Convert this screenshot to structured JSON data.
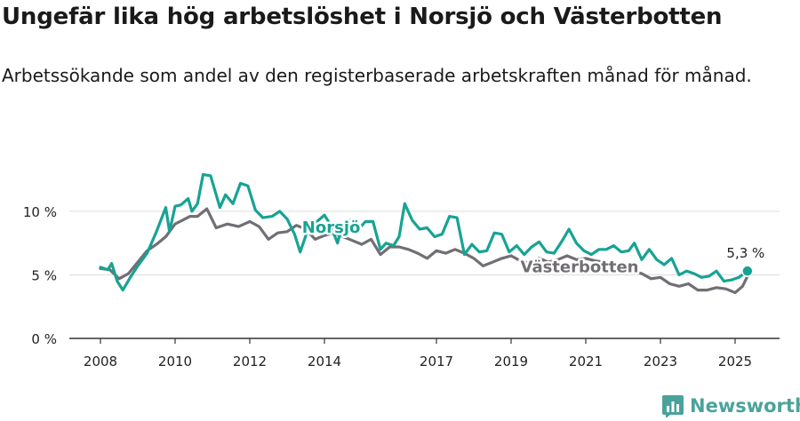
{
  "title": "Ungefär lika hög arbetslöshet i Norsjö och Västerbotten",
  "subtitle": "Arbetssökande som andel av den registerbaserade arbetskraften månad för månad.",
  "colors": {
    "norsjo": "#17a394",
    "vasterbotten": "#716e74",
    "grid": "#dddddd",
    "axis": "#333333"
  },
  "logo": {
    "text": "Newsworthy",
    "icon": "bar-chart-logo-icon"
  },
  "chart_data": {
    "type": "line",
    "title": "Ungefär lika hög arbetslöshet i Norsjö och Västerbotten",
    "subtitle": "Arbetssökande som andel av den registerbaserade arbetskraften månad för månad.",
    "xlim": [
      2007.5,
      2026.5
    ],
    "ylim": [
      0,
      13
    ],
    "x_ticks": [
      2008,
      2010,
      2012,
      2014,
      2017,
      2019,
      2021,
      2023,
      2025
    ],
    "x_tick_labels": [
      "2008",
      "2010",
      "2012",
      "2014",
      "2017",
      "2019",
      "2021",
      "2023",
      "2025"
    ],
    "y_ticks": [
      0,
      5,
      10
    ],
    "y_tick_labels": [
      "0 %",
      "5 %",
      "10 %"
    ],
    "grid": "horizontal",
    "annotation": {
      "x": 2025.33,
      "y": 5.3,
      "text": "5,3 %"
    },
    "series": [
      {
        "name": "Norsjö",
        "label_pos": [
          2013.4,
          8.3
        ],
        "points": [
          [
            2008.0,
            5.6
          ],
          [
            2008.2,
            5.4
          ],
          [
            2008.3,
            5.9
          ],
          [
            2008.45,
            4.5
          ],
          [
            2008.6,
            3.8
          ],
          [
            2008.8,
            4.8
          ],
          [
            2009.0,
            5.7
          ],
          [
            2009.25,
            6.7
          ],
          [
            2009.5,
            8.4
          ],
          [
            2009.75,
            10.3
          ],
          [
            2009.85,
            8.4
          ],
          [
            2010.0,
            10.4
          ],
          [
            2010.15,
            10.5
          ],
          [
            2010.35,
            11.0
          ],
          [
            2010.45,
            10.0
          ],
          [
            2010.6,
            10.6
          ],
          [
            2010.75,
            12.9
          ],
          [
            2010.95,
            12.8
          ],
          [
            2011.2,
            10.3
          ],
          [
            2011.35,
            11.3
          ],
          [
            2011.55,
            10.6
          ],
          [
            2011.75,
            12.2
          ],
          [
            2011.95,
            12.0
          ],
          [
            2012.15,
            10.1
          ],
          [
            2012.35,
            9.5
          ],
          [
            2012.6,
            9.6
          ],
          [
            2012.8,
            10.0
          ],
          [
            2013.0,
            9.4
          ],
          [
            2013.2,
            8.2
          ],
          [
            2013.35,
            6.8
          ],
          [
            2013.55,
            8.5
          ],
          [
            2013.8,
            9.2
          ],
          [
            2014.0,
            9.7
          ],
          [
            2014.15,
            9.0
          ],
          [
            2014.35,
            7.5
          ],
          [
            2014.45,
            8.6
          ],
          [
            2014.6,
            8.3
          ],
          [
            2014.7,
            9.3
          ],
          [
            2014.85,
            8.4
          ],
          [
            2015.1,
            9.2
          ],
          [
            2015.3,
            9.2
          ],
          [
            2015.5,
            7.0
          ],
          [
            2015.65,
            7.5
          ],
          [
            2015.85,
            7.3
          ],
          [
            2016.0,
            8.0
          ],
          [
            2016.15,
            10.6
          ],
          [
            2016.35,
            9.3
          ],
          [
            2016.55,
            8.6
          ],
          [
            2016.75,
            8.7
          ],
          [
            2016.95,
            8.0
          ],
          [
            2017.15,
            8.2
          ],
          [
            2017.35,
            9.6
          ],
          [
            2017.55,
            9.5
          ],
          [
            2017.75,
            6.6
          ],
          [
            2017.95,
            7.4
          ],
          [
            2018.15,
            6.8
          ],
          [
            2018.35,
            6.9
          ],
          [
            2018.55,
            8.3
          ],
          [
            2018.75,
            8.2
          ],
          [
            2018.95,
            6.8
          ],
          [
            2019.15,
            7.3
          ],
          [
            2019.35,
            6.6
          ],
          [
            2019.55,
            7.2
          ],
          [
            2019.75,
            7.6
          ],
          [
            2019.95,
            6.8
          ],
          [
            2020.15,
            6.7
          ],
          [
            2020.35,
            7.6
          ],
          [
            2020.55,
            8.6
          ],
          [
            2020.75,
            7.5
          ],
          [
            2020.95,
            6.9
          ],
          [
            2021.15,
            6.6
          ],
          [
            2021.35,
            7.0
          ],
          [
            2021.55,
            7.0
          ],
          [
            2021.75,
            7.3
          ],
          [
            2021.95,
            6.8
          ],
          [
            2022.15,
            6.9
          ],
          [
            2022.3,
            7.5
          ],
          [
            2022.5,
            6.2
          ],
          [
            2022.7,
            7.0
          ],
          [
            2022.9,
            6.2
          ],
          [
            2023.1,
            5.8
          ],
          [
            2023.3,
            6.3
          ],
          [
            2023.5,
            5.0
          ],
          [
            2023.7,
            5.3
          ],
          [
            2023.9,
            5.1
          ],
          [
            2024.1,
            4.8
          ],
          [
            2024.3,
            4.9
          ],
          [
            2024.5,
            5.3
          ],
          [
            2024.7,
            4.5
          ],
          [
            2024.9,
            4.6
          ],
          [
            2025.1,
            4.8
          ],
          [
            2025.33,
            5.3
          ]
        ]
      },
      {
        "name": "Västerbotten",
        "label_pos": [
          2019.25,
          5.2
        ],
        "points": [
          [
            2008.0,
            5.5
          ],
          [
            2008.25,
            5.4
          ],
          [
            2008.5,
            4.7
          ],
          [
            2008.75,
            5.1
          ],
          [
            2009.0,
            6.0
          ],
          [
            2009.25,
            6.9
          ],
          [
            2009.5,
            7.4
          ],
          [
            2009.75,
            8.0
          ],
          [
            2010.0,
            9.0
          ],
          [
            2010.2,
            9.3
          ],
          [
            2010.4,
            9.6
          ],
          [
            2010.6,
            9.6
          ],
          [
            2010.85,
            10.2
          ],
          [
            2011.1,
            8.7
          ],
          [
            2011.4,
            9.0
          ],
          [
            2011.7,
            8.8
          ],
          [
            2012.0,
            9.2
          ],
          [
            2012.25,
            8.8
          ],
          [
            2012.5,
            7.8
          ],
          [
            2012.75,
            8.3
          ],
          [
            2013.0,
            8.4
          ],
          [
            2013.25,
            8.9
          ],
          [
            2013.5,
            8.6
          ],
          [
            2013.75,
            7.8
          ],
          [
            2014.0,
            8.1
          ],
          [
            2014.25,
            8.3
          ],
          [
            2014.5,
            8.0
          ],
          [
            2014.75,
            7.7
          ],
          [
            2015.0,
            7.4
          ],
          [
            2015.25,
            7.8
          ],
          [
            2015.5,
            6.6
          ],
          [
            2015.75,
            7.2
          ],
          [
            2016.0,
            7.2
          ],
          [
            2016.25,
            7.0
          ],
          [
            2016.5,
            6.7
          ],
          [
            2016.75,
            6.3
          ],
          [
            2017.0,
            6.9
          ],
          [
            2017.25,
            6.7
          ],
          [
            2017.5,
            7.0
          ],
          [
            2017.75,
            6.7
          ],
          [
            2018.0,
            6.3
          ],
          [
            2018.25,
            5.7
          ],
          [
            2018.5,
            6.0
          ],
          [
            2018.75,
            6.3
          ],
          [
            2019.0,
            6.5
          ],
          [
            2019.25,
            6.1
          ],
          [
            2019.5,
            5.9
          ],
          [
            2019.75,
            6.3
          ],
          [
            2020.0,
            6.0
          ],
          [
            2020.25,
            6.2
          ],
          [
            2020.5,
            6.5
          ],
          [
            2020.75,
            6.2
          ],
          [
            2021.0,
            6.3
          ],
          [
            2021.25,
            6.1
          ],
          [
            2021.5,
            6.0
          ],
          [
            2021.75,
            5.8
          ],
          [
            2022.0,
            5.6
          ],
          [
            2022.25,
            5.3
          ],
          [
            2022.5,
            5.1
          ],
          [
            2022.75,
            4.7
          ],
          [
            2023.0,
            4.8
          ],
          [
            2023.25,
            4.3
          ],
          [
            2023.5,
            4.1
          ],
          [
            2023.75,
            4.3
          ],
          [
            2024.0,
            3.8
          ],
          [
            2024.25,
            3.8
          ],
          [
            2024.5,
            4.0
          ],
          [
            2024.75,
            3.9
          ],
          [
            2025.0,
            3.6
          ],
          [
            2025.2,
            4.1
          ],
          [
            2025.33,
            4.9
          ]
        ]
      }
    ]
  }
}
